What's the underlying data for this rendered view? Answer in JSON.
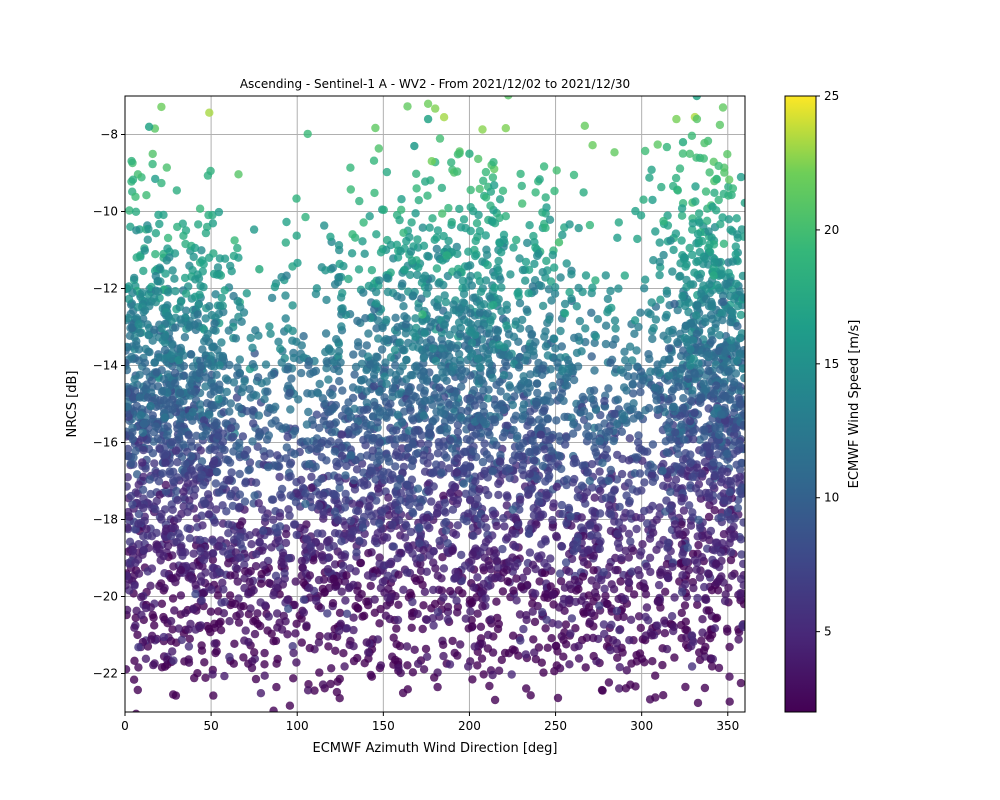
{
  "chart_data": {
    "type": "scatter",
    "title": "Ascending - Sentinel-1 A - WV2 - From 2021/12/02 to 2021/12/30",
    "xlabel": "ECMWF Azimuth Wind Direction [deg]",
    "ylabel": "NRCS [dB]",
    "xlim": [
      0,
      360
    ],
    "ylim": [
      -23,
      -7
    ],
    "xticks": [
      0,
      50,
      100,
      150,
      200,
      250,
      300,
      350
    ],
    "yticks": [
      -22,
      -20,
      -18,
      -16,
      -14,
      -12,
      -10,
      -8
    ],
    "grid": true,
    "colorbar": {
      "label": "ECMWF Wind Speed [m/s]",
      "range": [
        2,
        25
      ],
      "ticks": [
        5,
        10,
        15,
        20,
        25
      ],
      "colormap": "viridis"
    },
    "clusters": [
      {
        "x": 30,
        "y": -15.0,
        "speed": 10,
        "spread": [
          22,
          2.6
        ]
      },
      {
        "x": 340,
        "y": -14.0,
        "speed": 11,
        "spread": [
          18,
          2.6
        ]
      },
      {
        "x": 190,
        "y": -13.5,
        "speed": 12,
        "spread": [
          40,
          2.4
        ]
      },
      {
        "x": 120,
        "y": -16.5,
        "speed": 8,
        "spread": [
          50,
          2.0
        ]
      },
      {
        "x": 260,
        "y": -16.5,
        "speed": 8,
        "spread": [
          50,
          2.0
        ]
      },
      {
        "x": 180,
        "y": -19.5,
        "speed": 4,
        "spread": [
          180,
          1.2
        ]
      },
      {
        "x": 180,
        "y": -21.5,
        "speed": 3,
        "spread": [
          180,
          0.8
        ]
      }
    ],
    "highlights": [
      {
        "x": 14,
        "y": -7.8,
        "speed": 17
      },
      {
        "x": 176,
        "y": -7.6,
        "speed": 17
      },
      {
        "x": 200,
        "y": -8.5,
        "speed": 18
      },
      {
        "x": 252,
        "y": -10.8,
        "speed": 20
      },
      {
        "x": 324,
        "y": -8.2,
        "speed": 18
      },
      {
        "x": 332,
        "y": -7.0,
        "speed": 17
      },
      {
        "x": 78,
        "y": -11.5,
        "speed": 18
      },
      {
        "x": 168,
        "y": -8.3,
        "speed": 16
      }
    ]
  }
}
